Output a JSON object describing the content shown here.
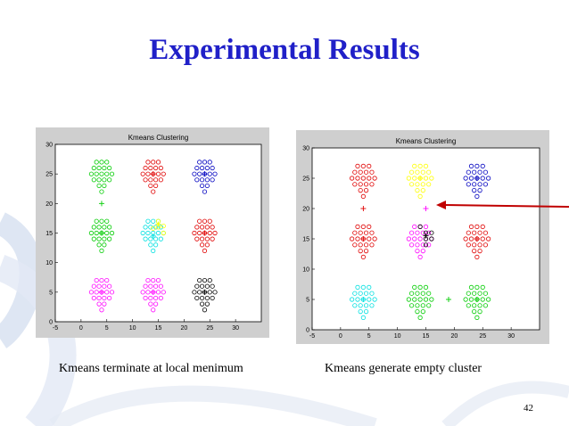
{
  "slide": {
    "title": "Experimental Results",
    "page_number": "42",
    "caption_left": "Kmeans terminate at local menimum",
    "caption_right": "Kmeans generate empty cluster",
    "arrow_color": "#c00000"
  },
  "chart_data": [
    {
      "type": "scatter",
      "title": "Kmeans Clustering",
      "xlim": [
        -5,
        35
      ],
      "ylim": [
        0,
        30
      ],
      "xticks": [
        -5,
        0,
        5,
        10,
        15,
        20,
        25,
        30
      ],
      "yticks": [
        0,
        5,
        10,
        15,
        20,
        25,
        30
      ],
      "point_groups": [
        {
          "center": [
            4,
            25
          ],
          "color": "#00cc00"
        },
        {
          "center": [
            14,
            25
          ],
          "color": "#e00000"
        },
        {
          "center": [
            24,
            25
          ],
          "color": "#0000c0"
        },
        {
          "center": [
            4,
            15
          ],
          "color": "#00cc00"
        },
        {
          "center": [
            14,
            15
          ],
          "color": "#00e0e0"
        },
        {
          "center": [
            24,
            15
          ],
          "color": "#e00000"
        },
        {
          "center": [
            4,
            5
          ],
          "color": "#ff00ff"
        },
        {
          "center": [
            14,
            5
          ],
          "color": "#ff00ff"
        },
        {
          "center": [
            24,
            5
          ],
          "color": "#000000"
        }
      ],
      "extra_points": [
        {
          "x": 14,
          "y": 15.8,
          "color": "#ffff00"
        },
        {
          "x": 15,
          "y": 16,
          "color": "#ffff00"
        },
        {
          "x": 16,
          "y": 15,
          "color": "#ffff00"
        },
        {
          "x": 15,
          "y": 17,
          "color": "#ffff00"
        },
        {
          "x": 16,
          "y": 16.2,
          "color": "#ffff00"
        }
      ],
      "centroids": [
        {
          "x": 4,
          "y": 20,
          "color": "#00cc00"
        },
        {
          "x": 14,
          "y": 25,
          "color": "#e00000"
        },
        {
          "x": 24,
          "y": 25,
          "color": "#0000c0"
        },
        {
          "x": 4,
          "y": 15,
          "color": "#00cc00"
        },
        {
          "x": 14,
          "y": 14.5,
          "color": "#00e0e0"
        },
        {
          "x": 15,
          "y": 16.5,
          "color": "#ffff00"
        },
        {
          "x": 24,
          "y": 15,
          "color": "#e00000"
        },
        {
          "x": 4,
          "y": 5,
          "color": "#ff00ff"
        },
        {
          "x": 14,
          "y": 5,
          "color": "#ff00ff"
        },
        {
          "x": 24,
          "y": 5,
          "color": "#000000"
        }
      ]
    },
    {
      "type": "scatter",
      "title": "Kmeans Clustering",
      "xlim": [
        -5,
        35
      ],
      "ylim": [
        0,
        30
      ],
      "xticks": [
        -5,
        0,
        5,
        10,
        15,
        20,
        25,
        30
      ],
      "yticks": [
        0,
        5,
        10,
        15,
        20,
        25,
        30
      ],
      "point_groups": [
        {
          "center": [
            4,
            25
          ],
          "color": "#e00000"
        },
        {
          "center": [
            14,
            25
          ],
          "color": "#ffff00"
        },
        {
          "center": [
            24,
            25
          ],
          "color": "#0000c0"
        },
        {
          "center": [
            4,
            15
          ],
          "color": "#e00000"
        },
        {
          "center": [
            14,
            15
          ],
          "color": "#ff00ff"
        },
        {
          "center": [
            24,
            15
          ],
          "color": "#e00000"
        },
        {
          "center": [
            4,
            5
          ],
          "color": "#00e0e0"
        },
        {
          "center": [
            14,
            5
          ],
          "color": "#00cc00"
        },
        {
          "center": [
            24,
            5
          ],
          "color": "#00cc00"
        }
      ],
      "extra_points": [
        {
          "x": 14,
          "y": 17,
          "color": "#000000"
        },
        {
          "x": 15,
          "y": 16,
          "color": "#000000"
        },
        {
          "x": 16,
          "y": 16,
          "color": "#000000"
        },
        {
          "x": 15,
          "y": 15,
          "color": "#000000"
        },
        {
          "x": 16,
          "y": 15,
          "color": "#000000"
        },
        {
          "x": 15,
          "y": 14,
          "color": "#000000"
        }
      ],
      "centroids": [
        {
          "x": 4,
          "y": 20,
          "color": "#e00000"
        },
        {
          "x": 15,
          "y": 20,
          "color": "#ff00ff"
        },
        {
          "x": 24,
          "y": 25,
          "color": "#0000c0"
        },
        {
          "x": 4,
          "y": 15,
          "color": "#e00000"
        },
        {
          "x": 15,
          "y": 15.5,
          "color": "#000000"
        },
        {
          "x": 24,
          "y": 15,
          "color": "#e00000"
        },
        {
          "x": 4,
          "y": 5,
          "color": "#00e0e0"
        },
        {
          "x": 19,
          "y": 5,
          "color": "#00cc00"
        },
        {
          "x": 24,
          "y": 5,
          "color": "#00cc00"
        },
        {
          "x": 14,
          "y": 25,
          "color": "#ffff00"
        }
      ]
    }
  ]
}
